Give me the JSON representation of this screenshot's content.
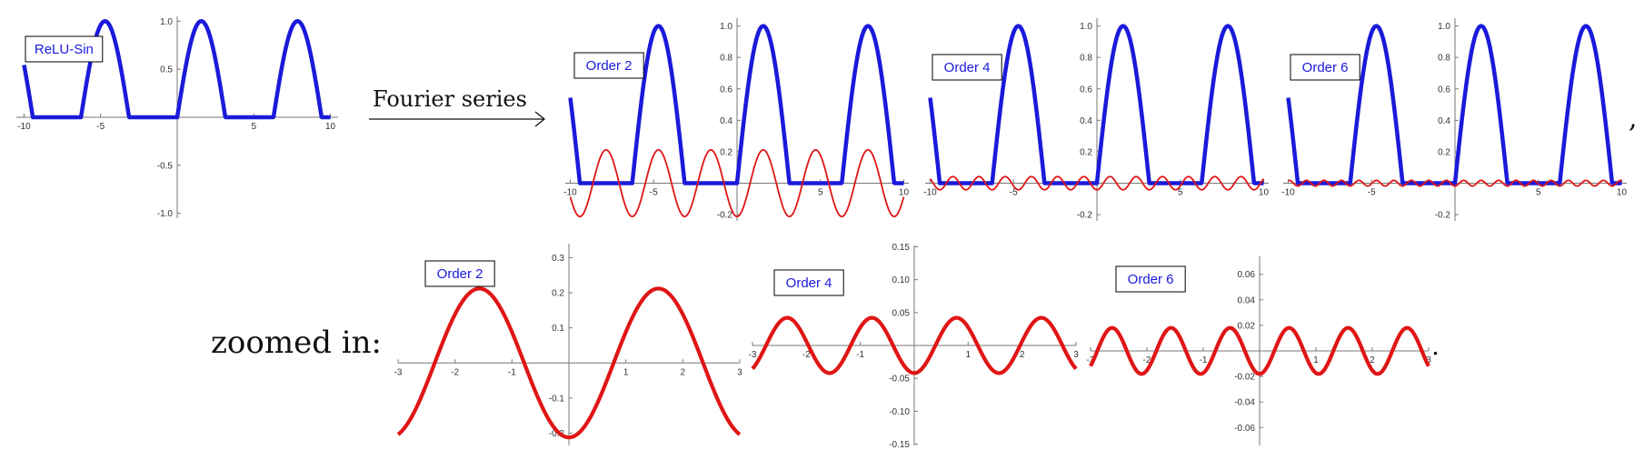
{
  "annotations": {
    "arrow_label": "Fourier series",
    "zoom_label": "zoomed in:",
    "comma": ",",
    "period": "."
  },
  "colors": {
    "function": "#1a1adb",
    "error": "#e01515",
    "legend_text": "#1a1adb"
  },
  "chart_data": [
    {
      "id": "relu-sin",
      "type": "line",
      "legend": "ReLU-Sin",
      "xlim": [
        -10.5,
        10.5
      ],
      "ylim": [
        -1.05,
        1.05
      ],
      "xticks": [
        -10,
        -5,
        5,
        10
      ],
      "xtick_labels": [
        "-10",
        "-5",
        "5",
        "10"
      ],
      "yticks": [
        -1.0,
        -0.5,
        0.5,
        1.0
      ],
      "ytick_labels": [
        "-1.0",
        "-0.5",
        "0.5",
        "1.0"
      ],
      "series": [
        {
          "function": "max(0, sin(x))",
          "x_range": [
            -10,
            10
          ],
          "color": "#1a1adb"
        }
      ]
    },
    {
      "id": "order-2",
      "type": "line",
      "legend": "Order 2",
      "xlim": [
        -10.3,
        10.3
      ],
      "ylim": [
        -0.24,
        1.05
      ],
      "xticks": [
        -10,
        -5,
        5,
        10
      ],
      "xtick_labels": [
        "-10",
        "-5",
        "5",
        "10"
      ],
      "yticks": [
        -0.2,
        0.2,
        0.4,
        0.6,
        0.8,
        1.0
      ],
      "ytick_labels": [
        "-0.2",
        "0.2",
        "0.4",
        "0.6",
        "0.8",
        "1.0"
      ],
      "series": [
        {
          "function": "max(0, sin(x))",
          "x_range": [
            -10,
            10
          ],
          "color": "#1a1adb"
        },
        {
          "function": "Fourier error, order 2",
          "x_range": [
            -10,
            10
          ],
          "amplitude": 0.212,
          "color": "#e01515"
        }
      ]
    },
    {
      "id": "order-4",
      "type": "line",
      "legend": "Order 4",
      "xlim": [
        -10.3,
        10.3
      ],
      "ylim": [
        -0.24,
        1.05
      ],
      "xticks": [
        -10,
        -5,
        5,
        10
      ],
      "xtick_labels": [
        "-10",
        "-5",
        "5",
        "10"
      ],
      "yticks": [
        -0.2,
        0.2,
        0.4,
        0.6,
        0.8,
        1.0
      ],
      "ytick_labels": [
        "-0.2",
        "0.2",
        "0.4",
        "0.6",
        "0.8",
        "1.0"
      ],
      "series": [
        {
          "function": "max(0, sin(x))",
          "x_range": [
            -10,
            10
          ],
          "color": "#1a1adb"
        },
        {
          "function": "Fourier error, order 4",
          "x_range": [
            -10,
            10
          ],
          "amplitude": 0.042,
          "color": "#e01515"
        }
      ]
    },
    {
      "id": "order-6",
      "type": "line",
      "legend": "Order 6",
      "xlim": [
        -10.3,
        10.3
      ],
      "ylim": [
        -0.24,
        1.05
      ],
      "xticks": [
        -10,
        -5,
        5,
        10
      ],
      "xtick_labels": [
        "-10",
        "-5",
        "5",
        "10"
      ],
      "yticks": [
        -0.2,
        0.2,
        0.4,
        0.6,
        0.8,
        1.0
      ],
      "ytick_labels": [
        "-0.2",
        "0.2",
        "0.4",
        "0.6",
        "0.8",
        "1.0"
      ],
      "series": [
        {
          "function": "max(0, sin(x))",
          "x_range": [
            -10,
            10
          ],
          "color": "#1a1adb"
        },
        {
          "function": "Fourier error, order 6",
          "x_range": [
            -10,
            10
          ],
          "amplitude": 0.018,
          "color": "#e01515"
        }
      ]
    },
    {
      "id": "zoom-order-2",
      "type": "line",
      "legend": "Order 2",
      "xlim": [
        -3,
        3
      ],
      "ylim": [
        -0.235,
        0.34
      ],
      "xticks": [
        -3,
        -2,
        -1,
        1,
        2,
        3
      ],
      "xtick_labels": [
        "-3",
        "-2",
        "-1",
        "1",
        "2",
        "3"
      ],
      "yticks": [
        -0.2,
        -0.1,
        0.1,
        0.2,
        0.3
      ],
      "ytick_labels": [
        "-0.2",
        "-0.1",
        "0.1",
        "0.2",
        "0.3"
      ],
      "series": [
        {
          "function": "Fourier error, order 2",
          "x_range": [
            -3,
            3
          ],
          "amplitude": 0.212,
          "color": "#e01515"
        }
      ]
    },
    {
      "id": "zoom-order-4",
      "type": "line",
      "legend": "Order 4",
      "xlim": [
        -3,
        3
      ],
      "ylim": [
        -0.152,
        0.152
      ],
      "xticks": [
        -3,
        -2,
        -1,
        1,
        2,
        3
      ],
      "xtick_labels": [
        "-3",
        "-2",
        "-1",
        "1",
        "2",
        "3"
      ],
      "yticks": [
        -0.15,
        -0.1,
        -0.05,
        0.05,
        0.1,
        0.15
      ],
      "ytick_labels": [
        "-0.15",
        "-0.10",
        "-0.05",
        "0.05",
        "0.10",
        "0.15"
      ],
      "series": [
        {
          "function": "Fourier error, order 4",
          "x_range": [
            -3,
            3
          ],
          "amplitude": 0.042,
          "color": "#e01515"
        }
      ]
    },
    {
      "id": "zoom-order-6",
      "type": "line",
      "legend": "Order 6",
      "xlim": [
        -3,
        3
      ],
      "ylim": [
        -0.074,
        0.074
      ],
      "xticks": [
        -3,
        -2,
        -1,
        1,
        2,
        3
      ],
      "xtick_labels": [
        "-3",
        "-2",
        "-1",
        "1",
        "2",
        "3"
      ],
      "yticks": [
        -0.06,
        -0.04,
        -0.02,
        0.02,
        0.04,
        0.06
      ],
      "ytick_labels": [
        "-0.06",
        "-0.04",
        "-0.02",
        "0.02",
        "0.04",
        "0.06"
      ],
      "series": [
        {
          "function": "Fourier error, order 6",
          "x_range": [
            -3,
            3
          ],
          "amplitude": 0.018,
          "color": "#e01515"
        }
      ]
    }
  ]
}
